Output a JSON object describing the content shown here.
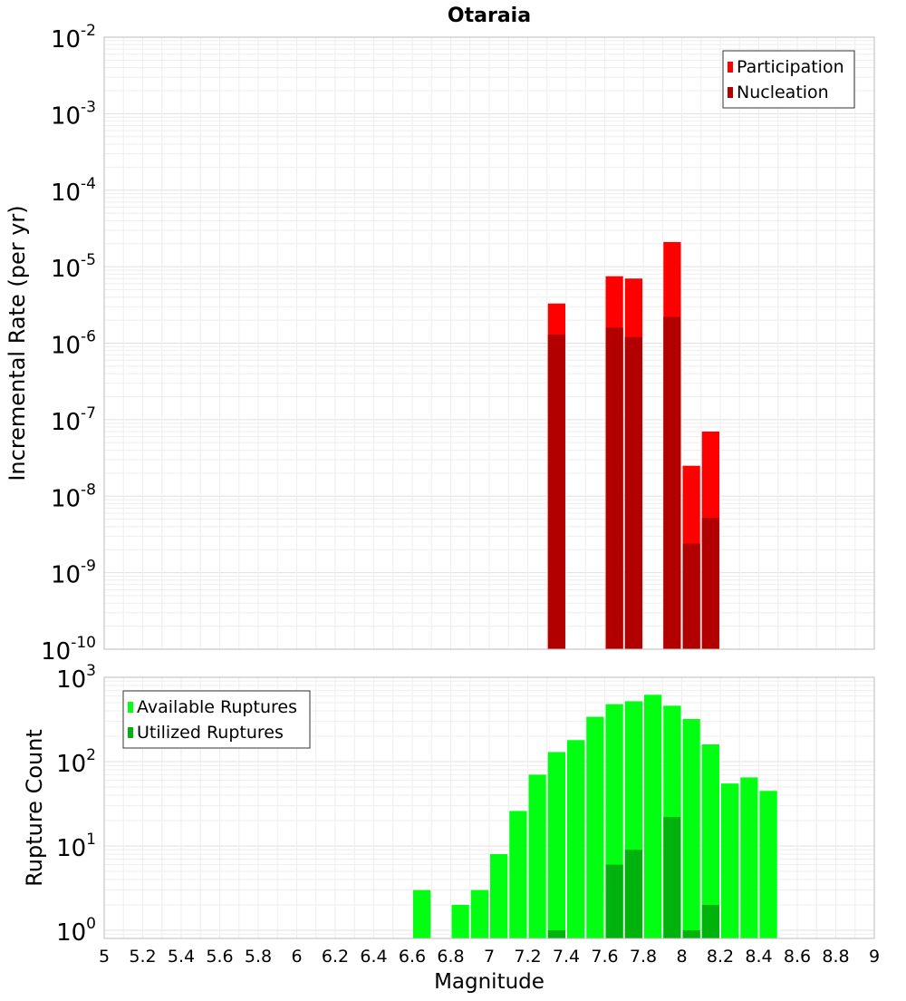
{
  "chart_data": [
    {
      "type": "bar",
      "title": "Otaraia",
      "xlabel": "",
      "ylabel": "Incremental Rate (per yr)",
      "yscale": "log",
      "ylim": [
        1e-10,
        0.01
      ],
      "xlim": [
        5,
        9
      ],
      "y_tick_exponents": [
        "-10",
        "-9",
        "-8",
        "-7",
        "-6",
        "-5",
        "-4",
        "-3",
        "-2"
      ],
      "grid": true,
      "legend_position": "top-right",
      "series": [
        {
          "name": "Participation",
          "color": "#ff0000",
          "x": [
            7.35,
            7.65,
            7.75,
            7.95,
            8.05,
            8.15
          ],
          "values": [
            3.3e-06,
            7.5e-06,
            7e-06,
            2.1e-05,
            2.5e-08,
            7e-08
          ]
        },
        {
          "name": "Nucleation",
          "color": "#b20000",
          "x": [
            7.35,
            7.65,
            7.75,
            7.95,
            8.05,
            8.15
          ],
          "values": [
            1.3e-06,
            1.6e-06,
            1.2e-06,
            2.2e-06,
            2.4e-09,
            5.2e-09
          ]
        }
      ]
    },
    {
      "type": "bar",
      "title": "",
      "xlabel": "Magnitude",
      "ylabel": "Rupture Count",
      "yscale": "log",
      "ylim": [
        0.8,
        1000
      ],
      "xlim": [
        5,
        9
      ],
      "x_tick_labels": [
        "5",
        "5.2",
        "5.4",
        "5.6",
        "5.8",
        "6",
        "6.2",
        "6.4",
        "6.6",
        "6.8",
        "7",
        "7.2",
        "7.4",
        "7.6",
        "7.8",
        "8",
        "8.2",
        "8.4",
        "8.6",
        "8.8",
        "9"
      ],
      "y_tick_exponents": [
        "0",
        "1",
        "2",
        "3"
      ],
      "grid": true,
      "legend_position": "top-left",
      "series": [
        {
          "name": "Available Ruptures",
          "color": "#00ff11",
          "x": [
            6.65,
            6.85,
            6.95,
            7.05,
            7.15,
            7.25,
            7.35,
            7.45,
            7.55,
            7.65,
            7.75,
            7.85,
            7.95,
            8.05,
            8.15,
            8.25,
            8.35,
            8.45
          ],
          "values": [
            3,
            2,
            3,
            8,
            26,
            70,
            130,
            180,
            340,
            480,
            520,
            620,
            460,
            320,
            160,
            55,
            65,
            45
          ]
        },
        {
          "name": "Utilized Ruptures",
          "color": "#00b20c",
          "x": [
            7.35,
            7.65,
            7.75,
            7.95,
            8.05,
            8.15
          ],
          "values": [
            1,
            6,
            9,
            22,
            1,
            2
          ]
        }
      ]
    }
  ]
}
